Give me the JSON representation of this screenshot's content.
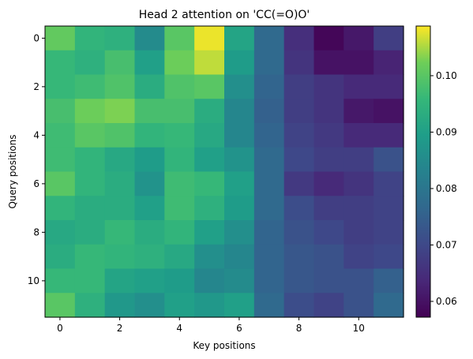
{
  "chart_data": {
    "type": "heatmap",
    "title": "Head 2 attention on 'CC(=O)O'",
    "xlabel": "Key positions",
    "ylabel": "Query positions",
    "x_ticks": [
      0,
      2,
      4,
      6,
      8,
      10
    ],
    "y_ticks": [
      0,
      2,
      4,
      6,
      8,
      10
    ],
    "colorbar_ticks": [
      "0.06",
      "0.07",
      "0.08",
      "0.09",
      "0.10"
    ],
    "colorbar_range": [
      0.0572,
      0.1088
    ],
    "colormap": "viridis",
    "grid": false,
    "values": [
      [
        0.101,
        0.095,
        0.094,
        0.085,
        0.1,
        0.108,
        0.091,
        0.077,
        0.065,
        0.058,
        0.061,
        0.068
      ],
      [
        0.096,
        0.094,
        0.098,
        0.09,
        0.102,
        0.106,
        0.089,
        0.077,
        0.066,
        0.06,
        0.06,
        0.063
      ],
      [
        0.096,
        0.097,
        0.099,
        0.093,
        0.099,
        0.1,
        0.086,
        0.076,
        0.068,
        0.066,
        0.064,
        0.064
      ],
      [
        0.098,
        0.102,
        0.103,
        0.098,
        0.098,
        0.093,
        0.084,
        0.075,
        0.068,
        0.066,
        0.061,
        0.06
      ],
      [
        0.097,
        0.1,
        0.099,
        0.095,
        0.096,
        0.092,
        0.084,
        0.076,
        0.069,
        0.067,
        0.064,
        0.064
      ],
      [
        0.097,
        0.095,
        0.092,
        0.089,
        0.095,
        0.09,
        0.087,
        0.077,
        0.07,
        0.068,
        0.068,
        0.072
      ],
      [
        0.1,
        0.095,
        0.093,
        0.087,
        0.097,
        0.096,
        0.09,
        0.077,
        0.067,
        0.064,
        0.066,
        0.069
      ],
      [
        0.095,
        0.093,
        0.093,
        0.09,
        0.097,
        0.094,
        0.089,
        0.077,
        0.071,
        0.068,
        0.068,
        0.069
      ],
      [
        0.092,
        0.093,
        0.096,
        0.093,
        0.095,
        0.09,
        0.086,
        0.076,
        0.072,
        0.07,
        0.068,
        0.069
      ],
      [
        0.093,
        0.096,
        0.095,
        0.094,
        0.092,
        0.086,
        0.084,
        0.076,
        0.073,
        0.072,
        0.069,
        0.07
      ],
      [
        0.096,
        0.096,
        0.091,
        0.09,
        0.089,
        0.084,
        0.085,
        0.076,
        0.073,
        0.072,
        0.072,
        0.075
      ],
      [
        0.1,
        0.094,
        0.088,
        0.086,
        0.09,
        0.088,
        0.09,
        0.077,
        0.071,
        0.069,
        0.072,
        0.077
      ]
    ]
  }
}
